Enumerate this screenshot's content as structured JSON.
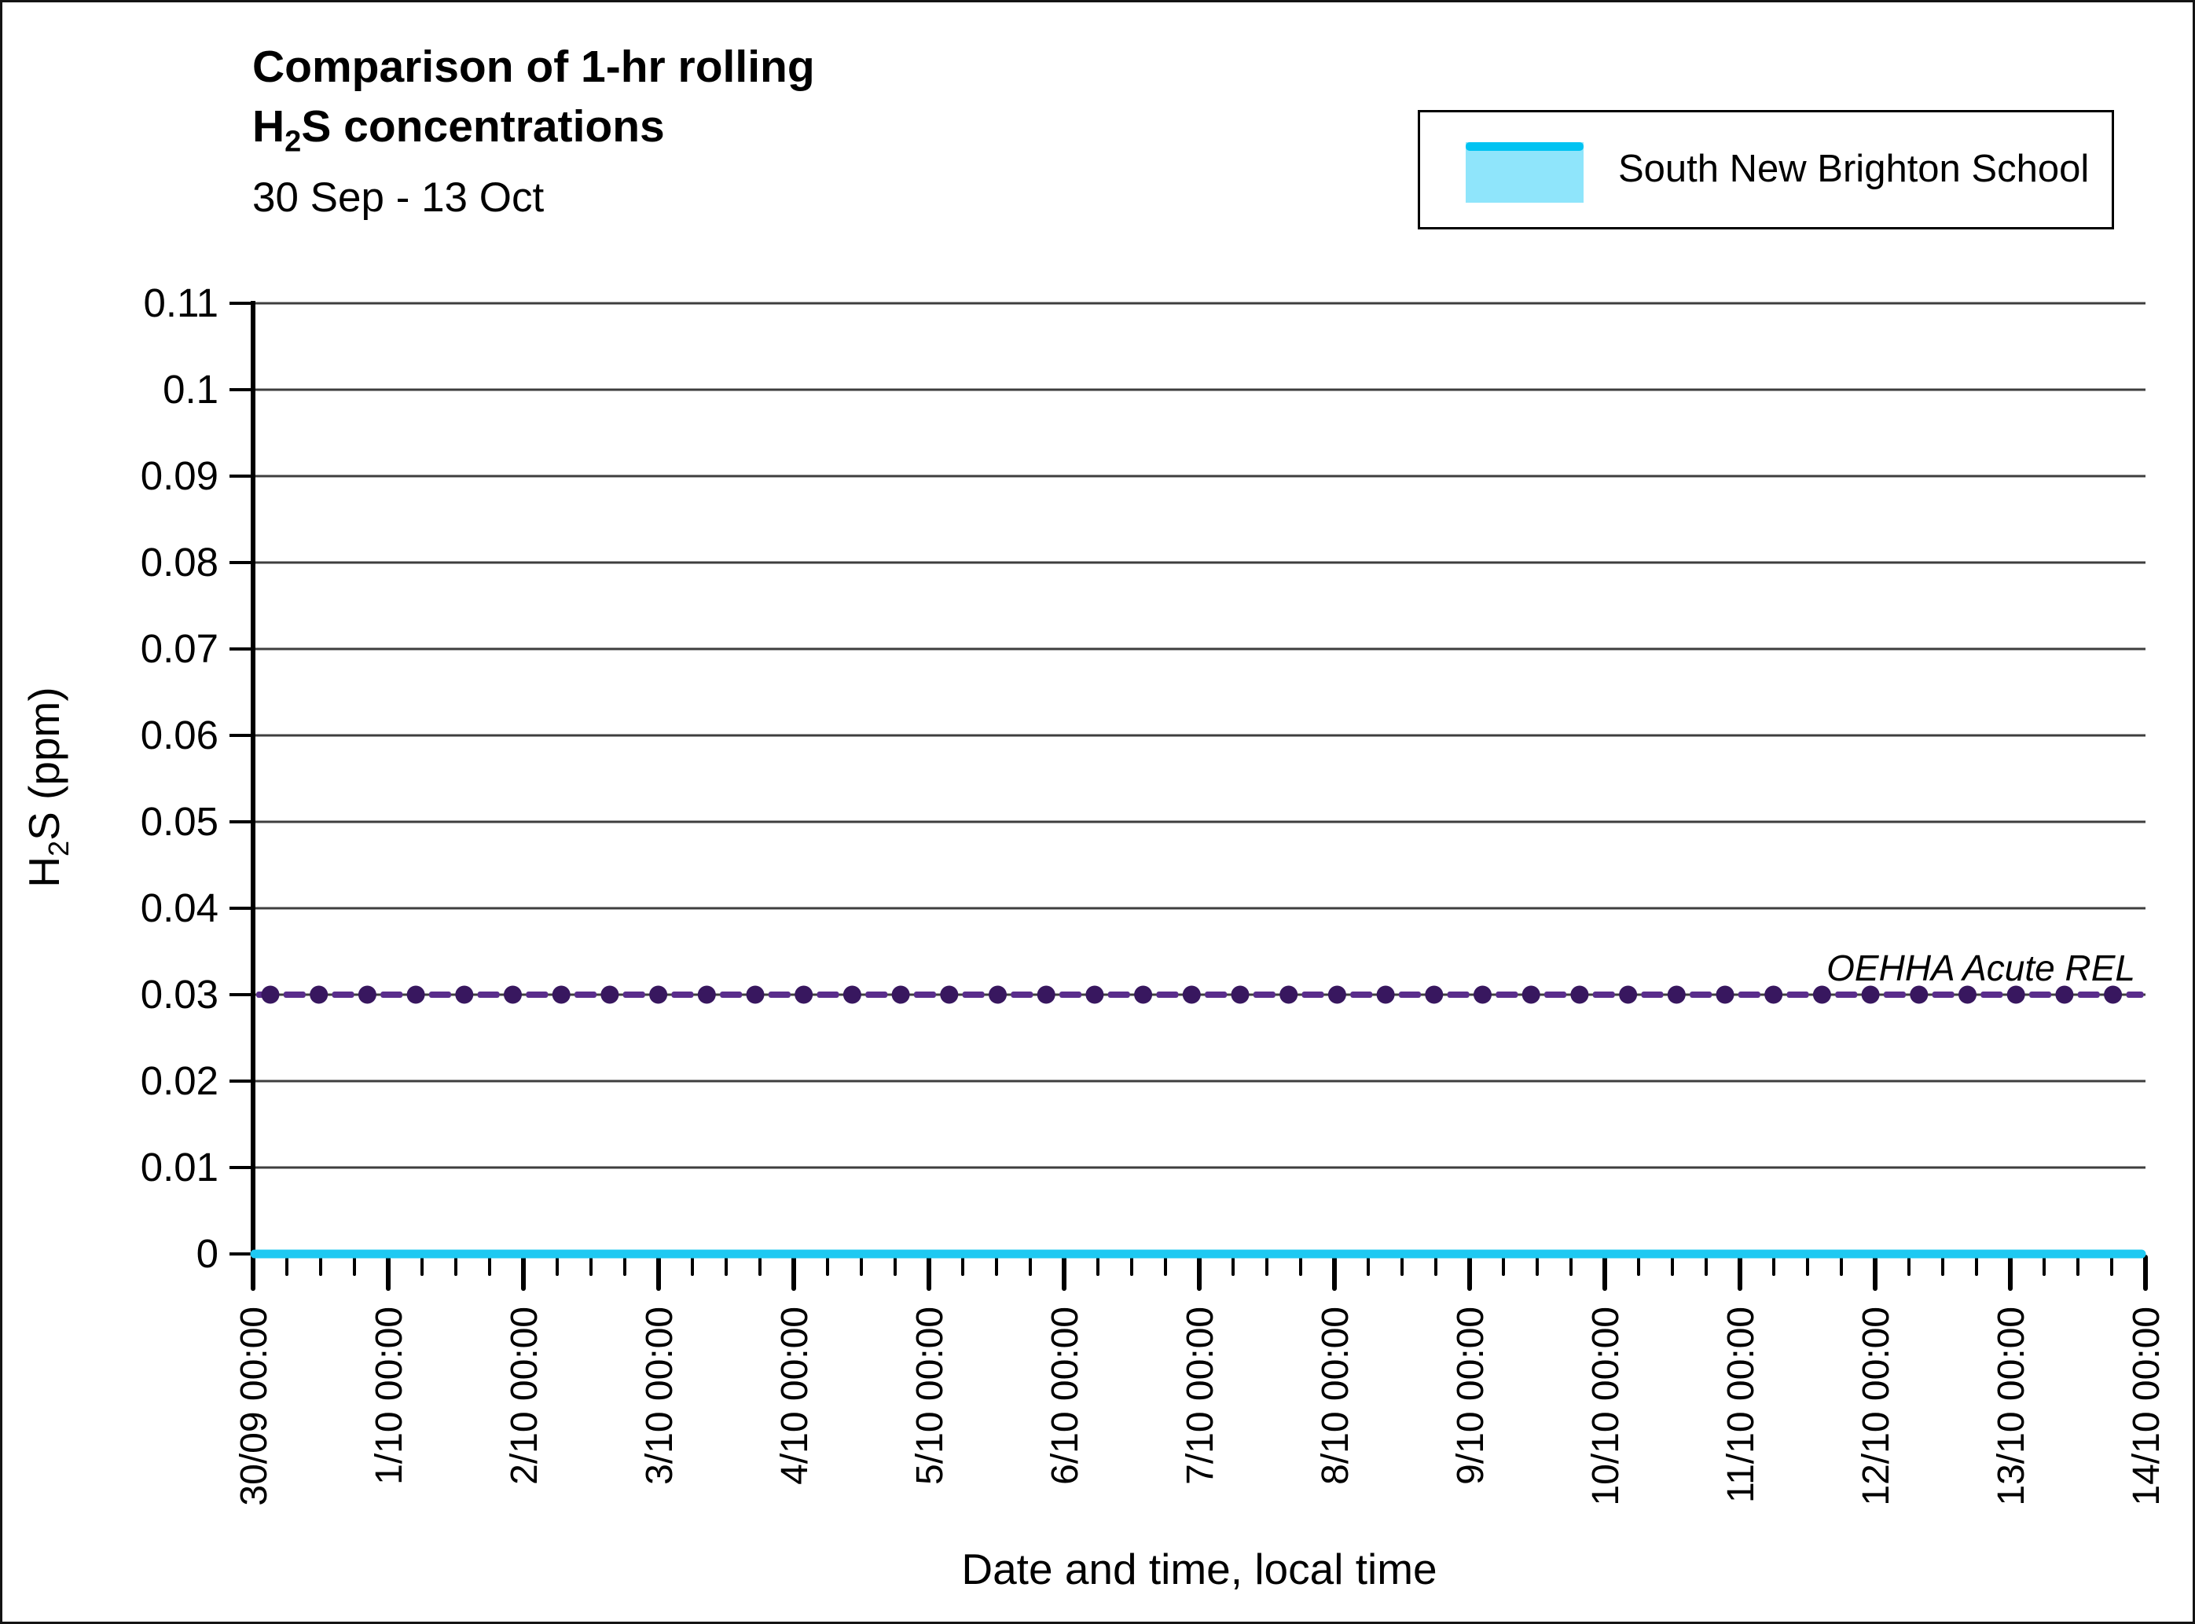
{
  "title": {
    "line1": "Comparison of 1-hr rolling",
    "formula_h": "H",
    "formula_sub": "2",
    "formula_rest": "S concentrations",
    "subtitle": "30 Sep - 13 Oct"
  },
  "legend": {
    "items": [
      {
        "label": "South New Brighton School",
        "swatch_fill": "#8FE5FB",
        "swatch_line": "#00C3F2"
      }
    ]
  },
  "axes": {
    "y_title_h": "H",
    "y_title_sub": "2",
    "y_title_rest": "S (ppm)",
    "x_title": "Date and time, local time"
  },
  "chart_data": {
    "type": "line",
    "title": "Comparison of 1-hr rolling H2S concentrations",
    "subtitle": "30 Sep - 13 Oct",
    "xlabel": "Date and time, local time",
    "ylabel": "H2S (ppm)",
    "ylim": [
      0,
      0.11
    ],
    "y_ticks": [
      "0",
      "0.01",
      "0.02",
      "0.03",
      "0.04",
      "0.05",
      "0.06",
      "0.07",
      "0.08",
      "0.09",
      "0.1",
      "0.11"
    ],
    "x_ticks": [
      "30/09 00:00",
      "1/10 00:00",
      "2/10 00:00",
      "3/10 00:00",
      "4/10 00:00",
      "5/10 00:00",
      "6/10 00:00",
      "7/10 00:00",
      "8/10 00:00",
      "9/10 00:00",
      "10/10 00:00",
      "11/10 00:00",
      "12/10 00:00",
      "13/10 00:00",
      "14/10 00:00"
    ],
    "minor_tick_interval_hours": 6,
    "grid": "horizontal",
    "grid_color": "#3E3E3E",
    "legend_position": "top-right",
    "series": [
      {
        "name": "South New Brighton School",
        "color": "#1EC9F2",
        "shape": "flat",
        "constant_value": 0,
        "x_start": "30/09 00:00",
        "x_end": "14/10 00:00"
      }
    ],
    "reference_line": {
      "label": "OEHHA Acute REL",
      "value": 0.03,
      "style": "dash-dot",
      "dot_color": "#38175F",
      "dash_color": "#5A2D8C",
      "label_color": "#000000"
    }
  }
}
